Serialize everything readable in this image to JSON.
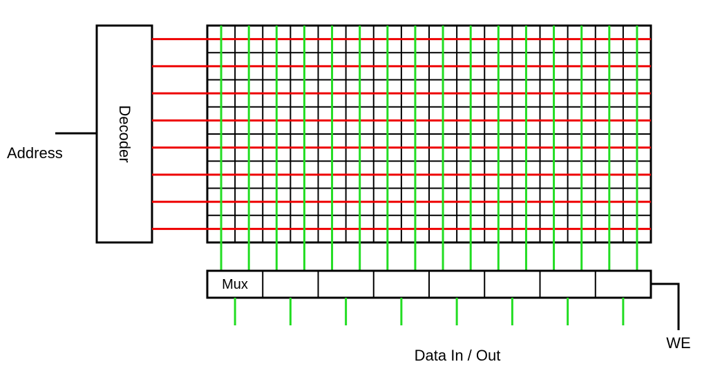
{
  "labels": {
    "address": "Address",
    "decoder": "Decoder",
    "mux": "Mux",
    "data_io": "Data In / Out",
    "we": "WE"
  },
  "colors": {
    "wordline": "#ee0000",
    "bitline": "#22dd22",
    "outline": "#000000"
  },
  "counts": {
    "word_lines": 8,
    "bit_lines": 16,
    "mux_cells": 8,
    "data_lines": 8
  }
}
